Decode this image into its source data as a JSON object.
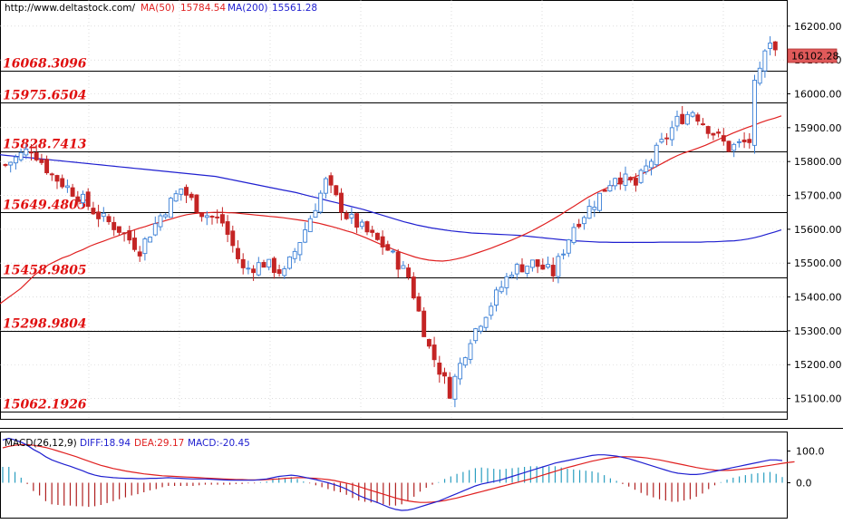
{
  "header": {
    "site": "http://www.deltastock.com/",
    "ma50_label": "MA(50)",
    "ma50_value": "15784.54",
    "ma200_label": "MA(200)",
    "ma200_value": "15561.28"
  },
  "price_tag": "16102.28",
  "macd_header": {
    "label": "MACD(26,12,9)",
    "diff": "DIFF:18.94",
    "dea": "DEA:29.17",
    "macd": "MACD:-20.45"
  },
  "colors": {
    "up": "#3a7fd6",
    "down": "#c42424",
    "ma50": "#e02020",
    "ma200": "#2020d0",
    "level_text": "#e01010",
    "grid": "#c8c8c8"
  },
  "chart_data": [
    {
      "type": "candlestick",
      "title": "",
      "y_ticks": [
        "16200.00",
        "16100.00",
        "16000.00",
        "15900.00",
        "15800.00",
        "15700.00",
        "15600.00",
        "15500.00",
        "15400.00",
        "15300.00",
        "15200.00",
        "15100.00"
      ],
      "ylim": [
        15040,
        16245
      ],
      "levels": [
        {
          "label": "16068.3096",
          "value": 16068.3096
        },
        {
          "label": "15975.6504",
          "value": 15975.6504
        },
        {
          "label": "15828.7413",
          "value": 15828.7413
        },
        {
          "label": "15649.4805",
          "value": 15649.4805
        },
        {
          "label": "15458.9805",
          "value": 15458.9805
        },
        {
          "label": "15298.9804",
          "value": 15298.9804
        },
        {
          "label": "15062.1926",
          "value": 15062.1926
        }
      ],
      "ma50": [
        15380,
        15395,
        15410,
        15425,
        15445,
        15465,
        15480,
        15495,
        15505,
        15515,
        15522,
        15532,
        15540,
        15550,
        15558,
        15565,
        15573,
        15580,
        15588,
        15595,
        15602,
        15608,
        15615,
        15620,
        15626,
        15632,
        15638,
        15643,
        15646,
        15648,
        15649,
        15650,
        15650,
        15649,
        15648,
        15646,
        15644,
        15642,
        15640,
        15638,
        15636,
        15634,
        15631,
        15628,
        15625,
        15622,
        15618,
        15613,
        15608,
        15602,
        15596,
        15590,
        15582,
        15574,
        15565,
        15556,
        15548,
        15540,
        15532,
        15525,
        15518,
        15513,
        15509,
        15507,
        15506,
        15508,
        15512,
        15517,
        15523,
        15530,
        15537,
        15544,
        15552,
        15560,
        15568,
        15577,
        15586,
        15596,
        15607,
        15618,
        15630,
        15642,
        15655,
        15668,
        15681,
        15694,
        15705,
        15715,
        15724,
        15732,
        15740,
        15748,
        15756,
        15765,
        15775,
        15786,
        15797,
        15808,
        15818,
        15826,
        15833,
        15840,
        15848,
        15857,
        15866,
        15875,
        15884,
        15892,
        15900,
        15907,
        15915,
        15922,
        15928,
        15935
      ],
      "ma200": [
        15820,
        15818,
        15816,
        15814,
        15812,
        15810,
        15808,
        15806,
        15804,
        15802,
        15800,
        15798,
        15796,
        15794,
        15792,
        15790,
        15788,
        15786,
        15784,
        15782,
        15780,
        15778,
        15776,
        15774,
        15772,
        15770,
        15768,
        15766,
        15764,
        15762,
        15760,
        15758,
        15756,
        15752,
        15748,
        15744,
        15740,
        15736,
        15732,
        15728,
        15724,
        15720,
        15716,
        15712,
        15708,
        15703,
        15698,
        15693,
        15688,
        15683,
        15678,
        15673,
        15668,
        15663,
        15658,
        15652,
        15646,
        15640,
        15634,
        15628,
        15622,
        15617,
        15612,
        15608,
        15604,
        15601,
        15598,
        15595,
        15593,
        15591,
        15589,
        15588,
        15587,
        15586,
        15585,
        15584,
        15583,
        15582,
        15580,
        15578,
        15576,
        15574,
        15572,
        15570,
        15568,
        15566,
        15565,
        15564,
        15563,
        15562,
        15562,
        15561,
        15561,
        15561,
        15561,
        15561,
        15561,
        15561,
        15562,
        15562,
        15562,
        15562,
        15562,
        15562,
        15562,
        15563,
        15563,
        15564,
        15565,
        15566,
        15568,
        15571,
        15575,
        15580,
        15586,
        15592,
        15598
      ]
    },
    {
      "type": "macd",
      "y_ticks": [
        "100.0",
        "0.0"
      ],
      "ylim": [
        -110,
        150
      ],
      "diff": [
        135,
        140,
        135,
        128,
        118,
        105,
        95,
        82,
        72,
        65,
        58,
        52,
        45,
        38,
        30,
        24,
        20,
        18,
        16,
        15,
        14,
        14,
        13,
        13,
        14,
        14,
        15,
        16,
        15,
        14,
        13,
        12,
        12,
        12,
        11,
        10,
        9,
        8,
        8,
        8,
        8,
        8,
        10,
        12,
        16,
        20,
        22,
        24,
        22,
        18,
        14,
        10,
        5,
        0,
        -6,
        -12,
        -20,
        -30,
        -40,
        -48,
        -55,
        -62,
        -70,
        -78,
        -84,
        -87,
        -86,
        -82,
        -76,
        -70,
        -64,
        -58,
        -50,
        -42,
        -34,
        -26,
        -18,
        -10,
        -4,
        0,
        4,
        8,
        14,
        20,
        26,
        32,
        38,
        44,
        50,
        56,
        62,
        66,
        70,
        74,
        78,
        82,
        86,
        88,
        88,
        86,
        84,
        80,
        76,
        70,
        64,
        58,
        52,
        46,
        40,
        34,
        30,
        28,
        26,
        26,
        28,
        32,
        36,
        40,
        44,
        48,
        52,
        56,
        60,
        64,
        68,
        72,
        72,
        70
      ],
      "dea": [
        110,
        115,
        118,
        120,
        120,
        118,
        115,
        111,
        106,
        100,
        94,
        88,
        82,
        75,
        68,
        61,
        55,
        50,
        45,
        41,
        37,
        34,
        31,
        28,
        26,
        24,
        22,
        21,
        20,
        19,
        18,
        17,
        16,
        15,
        14,
        13,
        12,
        11,
        10,
        10,
        9,
        9,
        9,
        10,
        11,
        12,
        14,
        15,
        16,
        16,
        15,
        14,
        12,
        10,
        7,
        3,
        -1,
        -6,
        -12,
        -18,
        -24,
        -30,
        -36,
        -42,
        -48,
        -53,
        -57,
        -60,
        -62,
        -62,
        -61,
        -59,
        -56,
        -52,
        -48,
        -43,
        -38,
        -33,
        -28,
        -23,
        -18,
        -13,
        -8,
        -3,
        2,
        7,
        12,
        18,
        24,
        30,
        36,
        42,
        48,
        53,
        58,
        63,
        68,
        72,
        76,
        79,
        81,
        82,
        82,
        81,
        80,
        78,
        75,
        72,
        68,
        64,
        60,
        56,
        52,
        48,
        45,
        42,
        40,
        39,
        39,
        40,
        42,
        44,
        46,
        49,
        52,
        55,
        58,
        61,
        64,
        66
      ]
    }
  ]
}
